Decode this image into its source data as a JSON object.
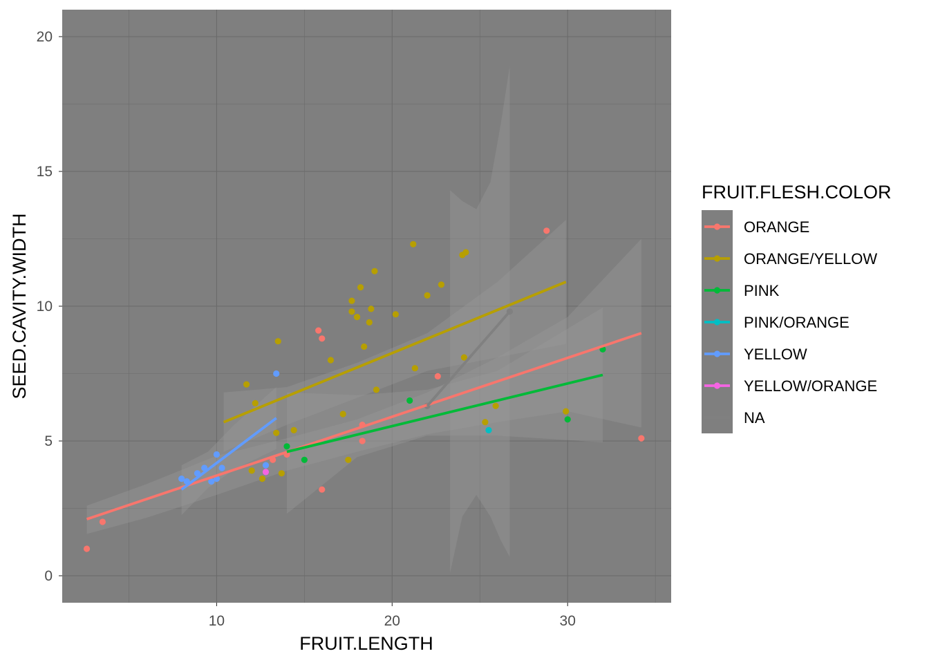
{
  "chart_data": {
    "type": "scatter",
    "xlabel": "FRUIT.LENGTH",
    "ylabel": "SEED.CAVITY.WIDTH",
    "xlim": [
      1.2,
      35.9
    ],
    "ylim": [
      -1,
      21
    ],
    "x_ticks": [
      10,
      20,
      30
    ],
    "y_ticks": [
      0,
      5,
      10,
      15,
      20
    ],
    "grid": true,
    "background": "#7f7f7f",
    "legend": {
      "title": "FRUIT.FLESH.COLOR",
      "position": "right",
      "items": [
        {
          "label": "ORANGE",
          "color": "#f8766d"
        },
        {
          "label": "ORANGE/YELLOW",
          "color": "#b79f00"
        },
        {
          "label": "PINK",
          "color": "#00ba38"
        },
        {
          "label": "PINK/ORANGE",
          "color": "#00bfc4"
        },
        {
          "label": "YELLOW",
          "color": "#619cff"
        },
        {
          "label": "YELLOW/ORANGE",
          "color": "#f564e3"
        },
        {
          "label": "NA",
          "color": "#808080"
        }
      ]
    },
    "series": [
      {
        "name": "ORANGE",
        "color": "#f8766d",
        "points": [
          [
            2.6,
            1.0
          ],
          [
            3.5,
            2.0
          ],
          [
            13.2,
            4.3
          ],
          [
            14.0,
            4.5
          ],
          [
            15.8,
            9.1
          ],
          [
            16.0,
            8.8
          ],
          [
            16.0,
            3.2
          ],
          [
            18.3,
            5.0
          ],
          [
            18.3,
            5.6
          ],
          [
            22.6,
            7.4
          ],
          [
            28.8,
            12.8
          ],
          [
            34.2,
            5.1
          ]
        ],
        "trend": {
          "x": [
            2.6,
            34.2
          ],
          "y": [
            2.1,
            9.0
          ]
        },
        "band": [
          [
            2.6,
            2.6,
            1.55
          ],
          [
            6,
            3.4,
            2.15
          ],
          [
            10,
            4.45,
            3.0
          ],
          [
            14,
            5.1,
            3.9
          ],
          [
            18,
            5.8,
            4.6
          ],
          [
            22,
            6.8,
            5.25
          ],
          [
            26,
            8.1,
            5.7
          ],
          [
            30,
            9.6,
            6.1
          ],
          [
            34.2,
            12.5,
            5.5
          ]
        ]
      },
      {
        "name": "ORANGE/YELLOW",
        "color": "#b79f00",
        "points": [
          [
            11.7,
            7.1
          ],
          [
            12.0,
            3.9
          ],
          [
            12.2,
            6.4
          ],
          [
            12.6,
            3.6
          ],
          [
            13.4,
            5.3
          ],
          [
            13.5,
            8.7
          ],
          [
            13.7,
            3.8
          ],
          [
            14.4,
            5.4
          ],
          [
            16.5,
            8.0
          ],
          [
            17.2,
            6.0
          ],
          [
            17.5,
            4.3
          ],
          [
            17.7,
            10.2
          ],
          [
            17.7,
            9.8
          ],
          [
            18.0,
            9.6
          ],
          [
            18.2,
            10.7
          ],
          [
            18.4,
            8.5
          ],
          [
            18.7,
            9.4
          ],
          [
            18.8,
            9.9
          ],
          [
            19.0,
            11.3
          ],
          [
            19.1,
            6.9
          ],
          [
            20.2,
            9.7
          ],
          [
            21.2,
            12.3
          ],
          [
            21.3,
            7.7
          ],
          [
            22.0,
            10.4
          ],
          [
            22.8,
            10.8
          ],
          [
            24.0,
            11.9
          ],
          [
            24.2,
            12.0
          ],
          [
            24.1,
            8.1
          ],
          [
            25.3,
            5.7
          ],
          [
            25.9,
            6.3
          ],
          [
            29.9,
            6.1
          ]
        ],
        "trend": {
          "x": [
            10.4,
            29.9
          ],
          "y": [
            5.7,
            10.9
          ]
        },
        "band": [
          [
            10.4,
            6.8,
            4.6
          ],
          [
            14,
            7.0,
            5.6
          ],
          [
            18,
            7.9,
            6.6
          ],
          [
            22,
            9.0,
            7.6
          ],
          [
            26,
            10.9,
            8.1
          ],
          [
            29.9,
            13.2,
            8.6
          ]
        ]
      },
      {
        "name": "PINK",
        "color": "#00ba38",
        "points": [
          [
            14.0,
            4.8
          ],
          [
            15.0,
            4.3
          ],
          [
            21.0,
            6.5
          ],
          [
            30.0,
            5.8
          ],
          [
            32.0,
            8.4
          ]
        ],
        "trend": {
          "x": [
            14.0,
            32.0
          ],
          "y": [
            4.6,
            7.45
          ]
        },
        "band": [
          [
            14,
            6.8,
            2.3
          ],
          [
            18,
            6.7,
            4.4
          ],
          [
            22,
            6.9,
            5.2
          ],
          [
            26,
            7.6,
            5.2
          ],
          [
            32,
            9.95,
            4.95
          ]
        ]
      },
      {
        "name": "PINK/ORANGE",
        "color": "#00bfc4",
        "points": [
          [
            25.5,
            5.4
          ]
        ]
      },
      {
        "name": "YELLOW",
        "color": "#619cff",
        "points": [
          [
            8.0,
            3.6
          ],
          [
            8.3,
            3.5
          ],
          [
            8.9,
            3.8
          ],
          [
            9.3,
            4.0
          ],
          [
            9.7,
            3.5
          ],
          [
            10.0,
            4.5
          ],
          [
            10.3,
            4.0
          ],
          [
            10.0,
            3.6
          ],
          [
            12.8,
            4.1
          ],
          [
            13.4,
            7.5
          ]
        ],
        "trend": {
          "x": [
            8.0,
            13.4
          ],
          "y": [
            3.2,
            5.85
          ]
        },
        "band": [
          [
            8.0,
            4.1,
            2.25
          ],
          [
            9.5,
            4.6,
            3.25
          ],
          [
            11,
            5.6,
            3.95
          ],
          [
            13.4,
            7.0,
            4.7
          ]
        ]
      },
      {
        "name": "YELLOW/ORANGE",
        "color": "#f564e3",
        "points": [
          [
            12.8,
            3.85
          ]
        ]
      },
      {
        "name": "NA",
        "color": "#808080",
        "points": [
          [
            22.0,
            6.3
          ],
          [
            26.7,
            9.8
          ]
        ],
        "trend": {
          "x": [
            22.0,
            26.7
          ],
          "y": [
            6.3,
            9.8
          ]
        },
        "band": [
          [
            23.3,
            14.3,
            0.1
          ],
          [
            24.0,
            13.9,
            2.2
          ],
          [
            24.8,
            13.6,
            3.0
          ],
          [
            25.6,
            14.6,
            2.2
          ],
          [
            26.2,
            16.8,
            1.3
          ],
          [
            26.7,
            18.9,
            0.7
          ]
        ]
      }
    ]
  }
}
